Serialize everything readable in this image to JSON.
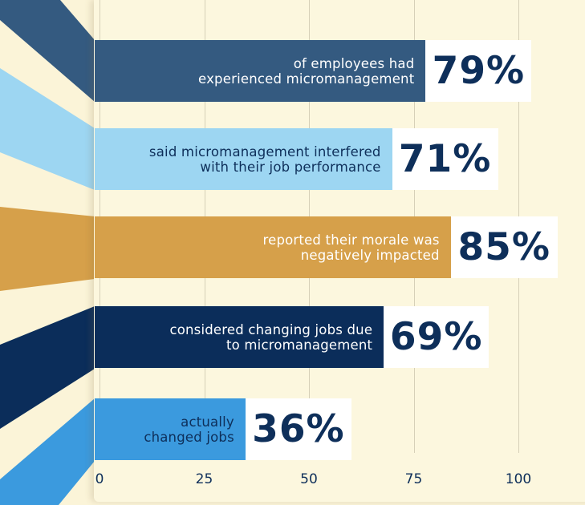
{
  "chart_data": {
    "type": "bar",
    "orientation": "horizontal",
    "categories": [
      "of employees had experienced micromanagement",
      "said micromanagement interfered with their job performance",
      "reported their morale was negatively impacted",
      "considered changing jobs due to micromanagement",
      "actually changed jobs"
    ],
    "label_lines": [
      [
        "of employees had",
        "experienced micromanagement"
      ],
      [
        "said micromanagement interfered",
        "with their job performance"
      ],
      [
        "reported their morale was",
        "negatively impacted"
      ],
      [
        "considered changing jobs due",
        "to micromanagement"
      ],
      [
        "actually",
        "changed jobs"
      ]
    ],
    "values": [
      79,
      71,
      85,
      69,
      36
    ],
    "value_labels": [
      "79%",
      "71%",
      "85%",
      "69%",
      "36%"
    ],
    "colors": [
      "#345a80",
      "#9dd6f2",
      "#d6a04a",
      "#0b2d5a",
      "#3b9ade"
    ],
    "text_colors": [
      "#ffffff",
      "#0e2f5a",
      "#ffffff",
      "#ffffff",
      "#0e2f5a"
    ],
    "xlim": [
      0,
      100
    ],
    "xticks": [
      "0",
      "25",
      "50",
      "75",
      "100"
    ],
    "grid": true,
    "title": "",
    "xlabel": "",
    "ylabel": ""
  }
}
